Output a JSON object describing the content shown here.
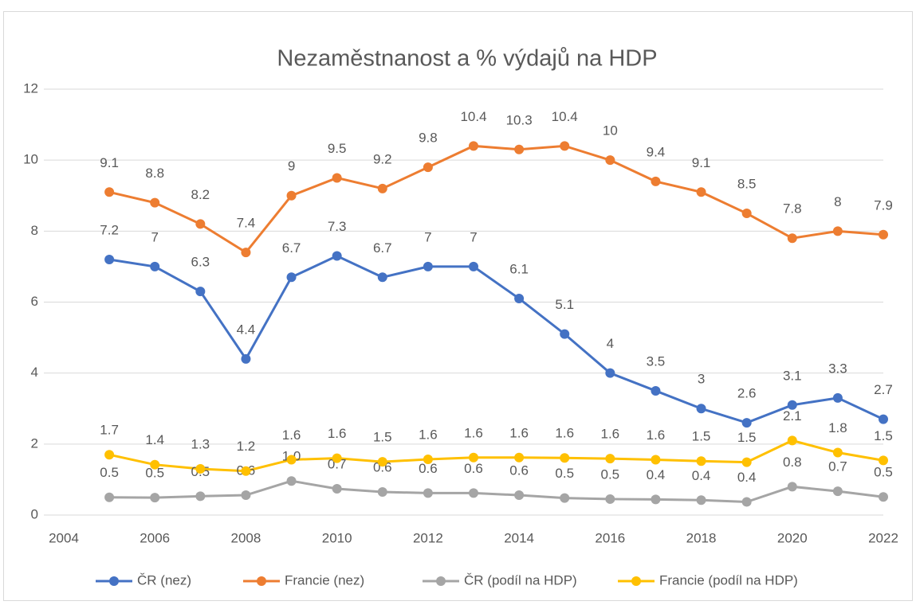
{
  "chart_data": {
    "type": "line",
    "title": "Nezaměstnanost a % výdajů na HDP",
    "x": [
      2005,
      2006,
      2007,
      2008,
      2009,
      2010,
      2011,
      2012,
      2013,
      2014,
      2015,
      2016,
      2017,
      2018,
      2019,
      2020,
      2021,
      2022
    ],
    "xlim": [
      2004,
      2022
    ],
    "xticks": [
      2004,
      2006,
      2008,
      2010,
      2012,
      2014,
      2016,
      2018,
      2020,
      2022
    ],
    "ylim": [
      0,
      12
    ],
    "yticks": [
      0,
      2,
      4,
      6,
      8,
      10,
      12
    ],
    "grid": true,
    "legend": "bottom",
    "series": [
      {
        "name": "ČR (nez)",
        "color": "#4472c4",
        "values": [
          7.2,
          7,
          6.3,
          4.4,
          6.7,
          7.3,
          6.7,
          7,
          7,
          6.1,
          5.1,
          4,
          3.5,
          3,
          2.6,
          3.1,
          3.3,
          2.7
        ]
      },
      {
        "name": "Francie (nez)",
        "color": "#ed7d31",
        "values": [
          9.1,
          8.8,
          8.2,
          7.4,
          9,
          9.5,
          9.2,
          9.8,
          10.4,
          10.3,
          10.4,
          10,
          9.4,
          9.1,
          8.5,
          7.8,
          8,
          7.9
        ]
      },
      {
        "name": "ČR (podíl na HDP)",
        "color": "#a5a5a5",
        "values": [
          0.5,
          0.49,
          0.53,
          0.56,
          0.96,
          0.74,
          0.65,
          0.62,
          0.62,
          0.56,
          0.48,
          0.45,
          0.44,
          0.42,
          0.37,
          0.8,
          0.67,
          0.51
        ],
        "value_labels": [
          "0.5",
          "0.5",
          "0.5",
          "0.6",
          "1.0",
          "0.7",
          "0.6",
          "0.6",
          "0.6",
          "0.6",
          "0.5",
          "0.5",
          "0.4",
          "0.4",
          "0.4",
          "0.8",
          "0.7",
          "0.5"
        ]
      },
      {
        "name": "Francie (podíl na HDP)",
        "color": "#ffc000",
        "values": [
          1.7,
          1.42,
          1.3,
          1.24,
          1.56,
          1.6,
          1.5,
          1.57,
          1.62,
          1.62,
          1.61,
          1.59,
          1.56,
          1.52,
          1.49,
          2.1,
          1.76,
          1.54
        ],
        "value_labels": [
          "1.7",
          "1.4",
          "1.3",
          "1.2",
          "1.6",
          "1.6",
          "1.5",
          "1.6",
          "1.6",
          "1.6",
          "1.6",
          "1.6",
          "1.6",
          "1.5",
          "1.5",
          "2.1",
          "1.8",
          "1.5"
        ]
      }
    ]
  }
}
